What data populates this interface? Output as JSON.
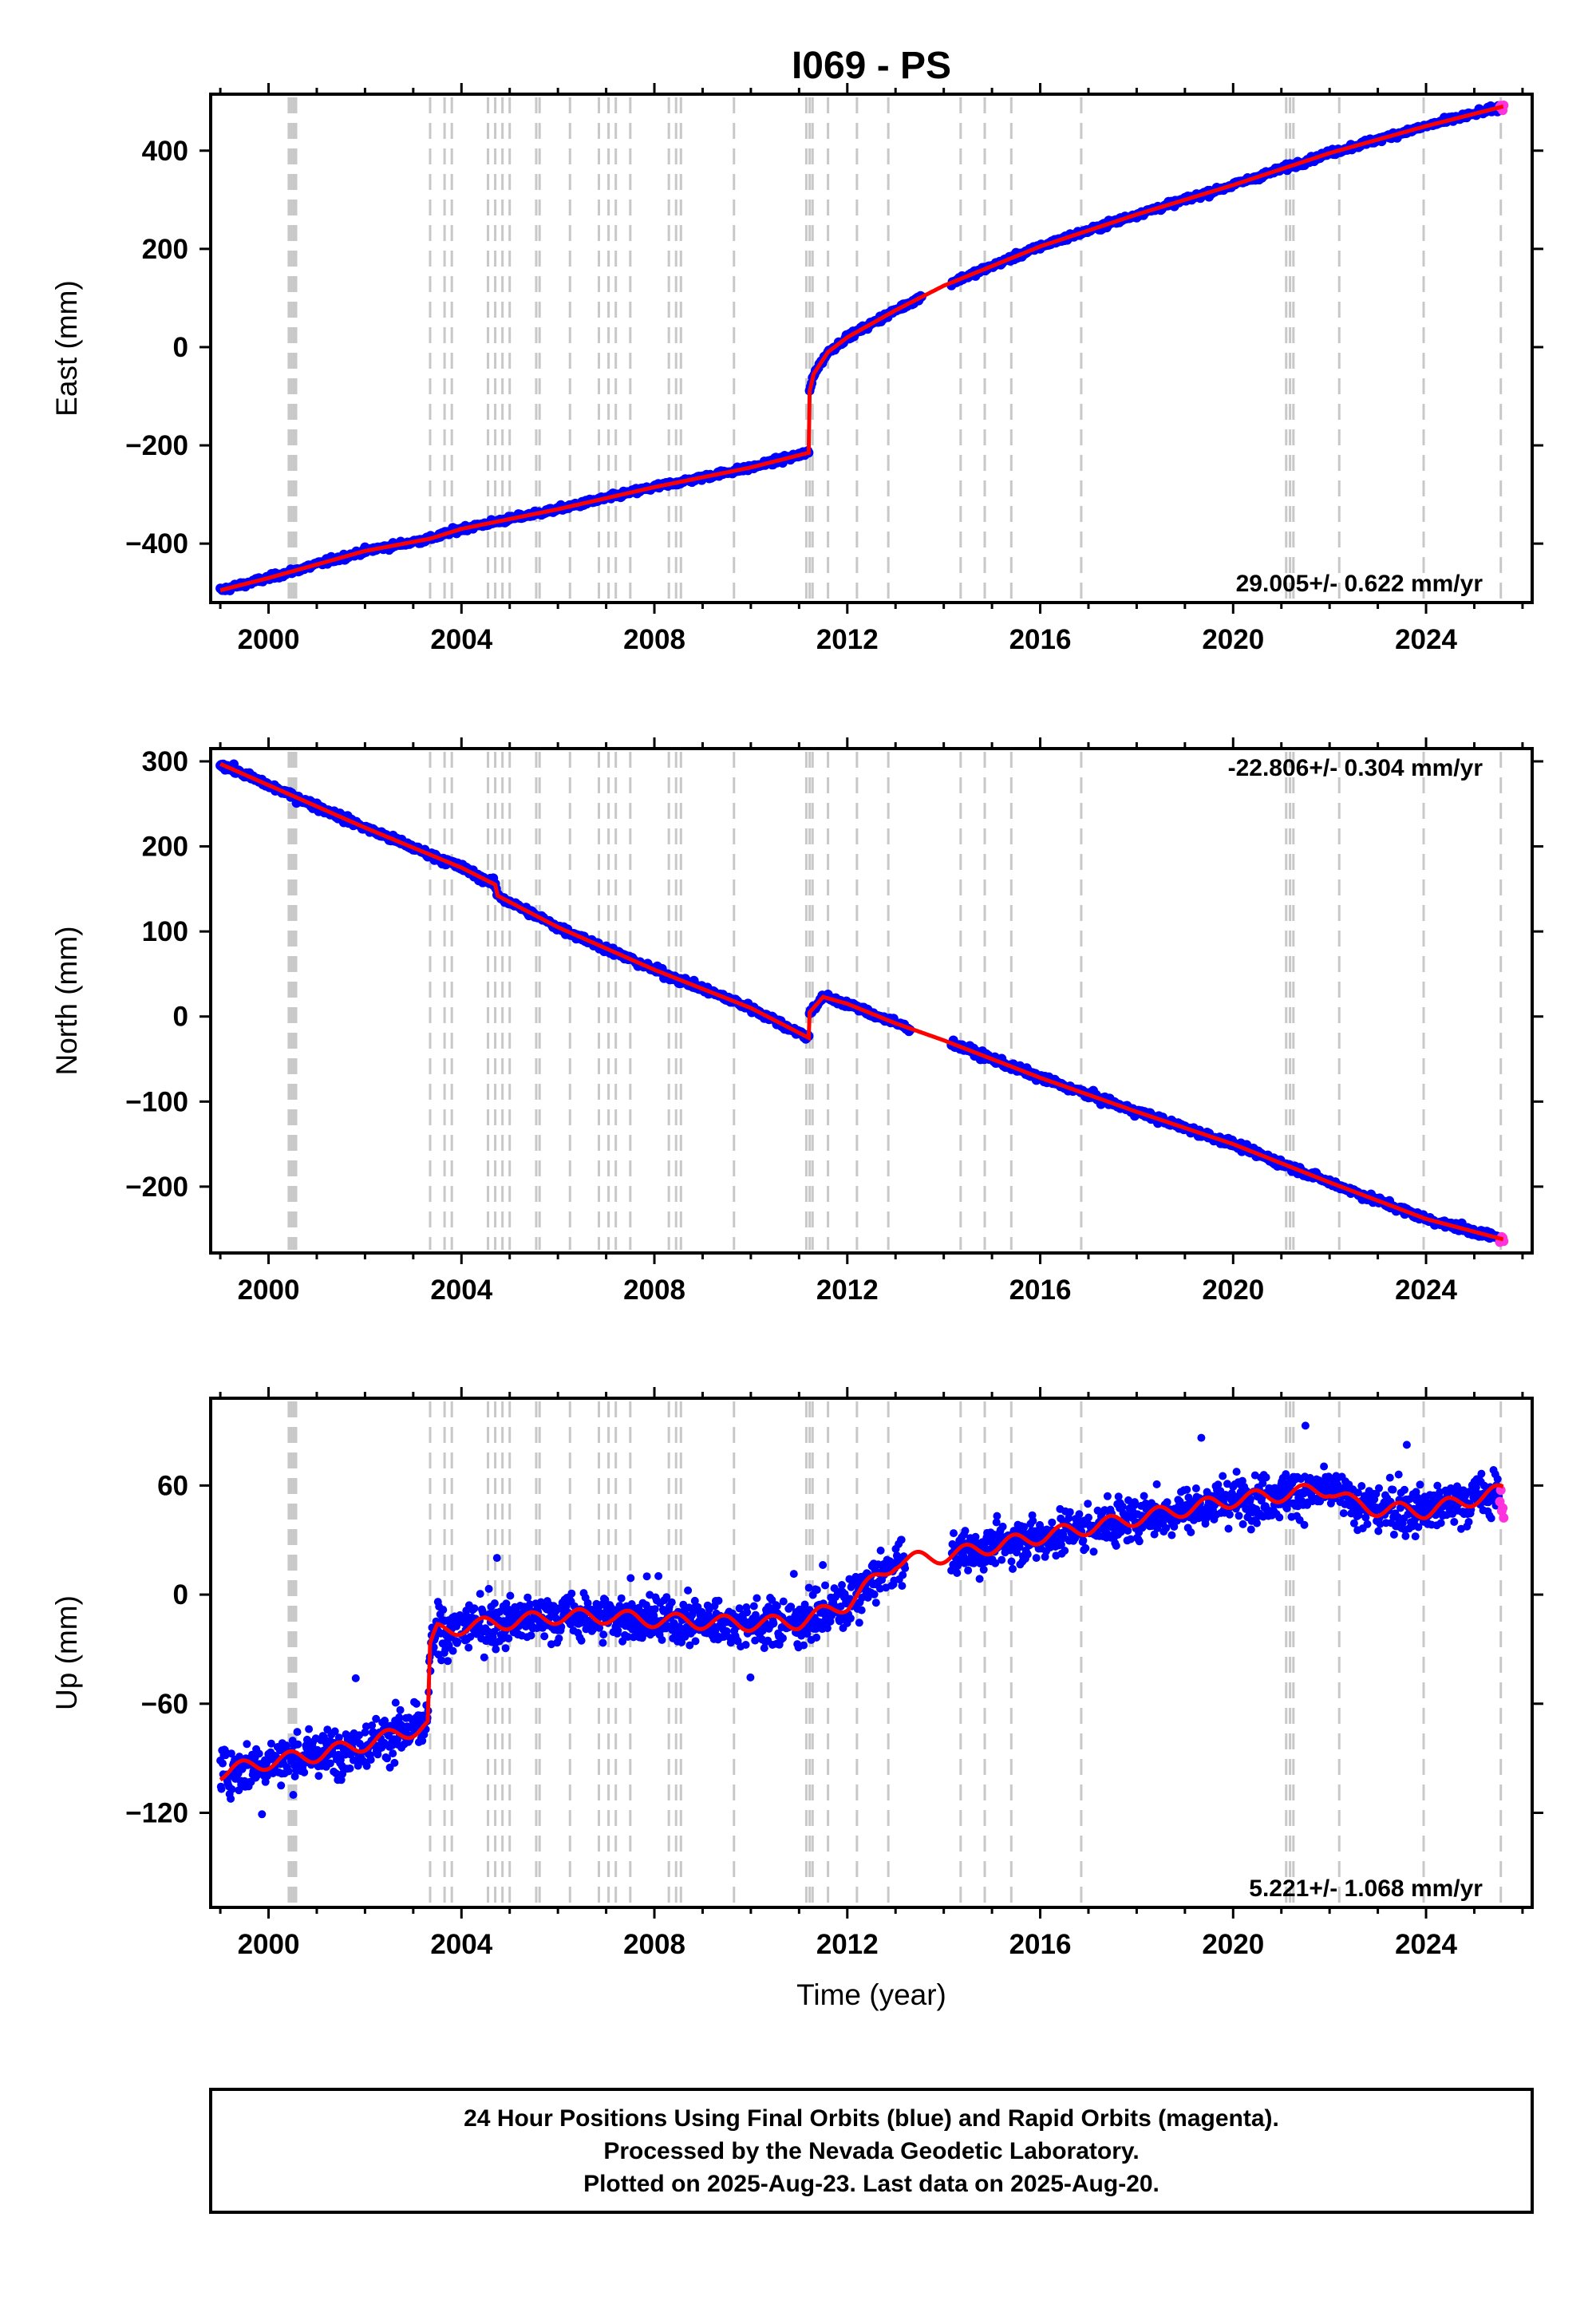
{
  "title": "I069 - PS",
  "time_axis": {
    "label": "Time (year)",
    "ticks": [
      2000,
      2004,
      2008,
      2012,
      2016,
      2020,
      2024
    ],
    "range": [
      1998.8,
      2026.2
    ]
  },
  "colors": {
    "final_orbits": "#0000ff",
    "rapid_orbits": "#ff33dd",
    "model": "#ff0000",
    "event_lines": "#c8c8c8"
  },
  "event_lines": [
    2000.42,
    2000.47,
    2000.52,
    2000.57,
    2003.35,
    2003.65,
    2003.8,
    2004.55,
    2004.7,
    2004.85,
    2005.0,
    2005.55,
    2005.62,
    2006.25,
    2006.85,
    2007.05,
    2007.2,
    2007.5,
    2008.3,
    2008.45,
    2008.55,
    2009.65,
    2011.15,
    2011.22,
    2011.28,
    2011.6,
    2012.2,
    2012.85,
    2014.35,
    2014.85,
    2015.4,
    2016.85,
    2021.1,
    2021.18,
    2021.25,
    2022.2,
    2023.95,
    2025.55
  ],
  "footer": {
    "line1": "24 Hour Positions Using Final Orbits (blue) and Rapid Orbits (magenta).",
    "line2": "Processed by the Nevada Geodetic Laboratory.",
    "line3": "Plotted on 2025-Aug-23. Last data on 2025-Aug-20."
  },
  "chart_data": [
    {
      "type": "scatter",
      "ylabel": "East (mm)",
      "ylim": [
        -520,
        515
      ],
      "yticks": [
        -400,
        -200,
        0,
        200,
        400
      ],
      "rate_text": "29.005+/- 0.622 mm/yr",
      "rate_position": "bottom-right",
      "noise": 4,
      "gap": [
        2013.55,
        2014.15
      ],
      "series": [
        {
          "x": [
            1999.0,
            2000.0,
            2002.0,
            2003.35,
            2004.0,
            2006.0,
            2008.0,
            2010.0,
            2011.2,
            2011.22,
            2011.3,
            2011.6,
            2012.0,
            2013.0,
            2014.0,
            2016.0,
            2018.0,
            2020.0,
            2022.0,
            2024.0,
            2025.6
          ],
          "y": [
            -495,
            -470,
            -415,
            -390,
            -370,
            -330,
            -285,
            -245,
            -215,
            -90,
            -55,
            -10,
            20,
            75,
            125,
            205,
            270,
            330,
            395,
            450,
            490
          ]
        }
      ]
    },
    {
      "type": "scatter",
      "ylabel": "North (mm)",
      "ylim": [
        -278,
        315
      ],
      "yticks": [
        -200,
        -100,
        0,
        100,
        200,
        300
      ],
      "rate_text": "-22.806+/- 0.304 mm/yr",
      "rate_position": "top-right",
      "noise": 3,
      "gap": [
        2013.3,
        2014.15
      ],
      "series": [
        {
          "x": [
            1999.0,
            2000.0,
            2002.0,
            2004.0,
            2004.7,
            2004.75,
            2006.0,
            2008.0,
            2010.0,
            2011.2,
            2011.22,
            2011.5,
            2012.0,
            2013.0,
            2014.0,
            2016.0,
            2018.0,
            2020.0,
            2022.0,
            2024.0,
            2025.6
          ],
          "y": [
            297,
            272,
            222,
            175,
            155,
            142,
            105,
            55,
            10,
            -25,
            5,
            23,
            15,
            -8,
            -28,
            -72,
            -112,
            -150,
            -195,
            -238,
            -262
          ]
        }
      ]
    },
    {
      "type": "scatter",
      "ylabel": "Up (mm)",
      "ylim": [
        -172,
        108
      ],
      "yticks": [
        -120,
        -60,
        0,
        60
      ],
      "rate_text": "5.221+/- 1.068 mm/yr",
      "rate_position": "bottom-right",
      "noise": 9,
      "gap": [
        2013.2,
        2014.15
      ],
      "series": [
        {
          "x": [
            1999.0,
            2000.0,
            2001.0,
            2002.0,
            2003.3,
            2003.35,
            2003.5,
            2004.0,
            2005.0,
            2006.0,
            2007.0,
            2008.0,
            2009.0,
            2010.0,
            2011.0,
            2012.0,
            2013.0,
            2014.2,
            2016.0,
            2018.0,
            2020.0,
            2022.0,
            2022.5,
            2023.0,
            2024.0,
            2025.6
          ],
          "y": [
            -98,
            -92,
            -88,
            -82,
            -72,
            -30,
            -20,
            -18,
            -15,
            -12,
            -12,
            -14,
            -15,
            -16,
            -15,
            -5,
            18,
            22,
            32,
            42,
            52,
            58,
            50,
            47,
            46,
            57
          ]
        }
      ]
    }
  ]
}
